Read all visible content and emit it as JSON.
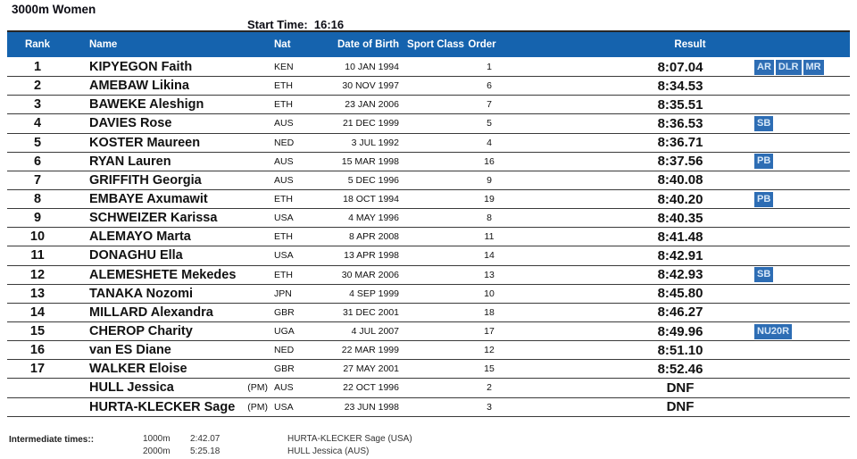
{
  "page": {
    "title": "3000m Women",
    "start_time": "Start Time:  16:16"
  },
  "table": {
    "columns": [
      "Rank",
      "Name",
      "Nat",
      "Date of Birth",
      "Sport Class",
      "Order",
      "Result"
    ],
    "rows": [
      {
        "rank": "1",
        "name": "KIPYEGON Faith",
        "pm": "",
        "nat": "KEN",
        "dob": "10 JAN 1994",
        "sport_class": "",
        "order": "1",
        "result": "8:07.04",
        "badges": [
          "AR",
          "DLR",
          "MR"
        ]
      },
      {
        "rank": "2",
        "name": "AMEBAW Likina",
        "pm": "",
        "nat": "ETH",
        "dob": "30 NOV 1997",
        "sport_class": "",
        "order": "6",
        "result": "8:34.53",
        "badges": []
      },
      {
        "rank": "3",
        "name": "BAWEKE Aleshign",
        "pm": "",
        "nat": "ETH",
        "dob": "23 JAN 2006",
        "sport_class": "",
        "order": "7",
        "result": "8:35.51",
        "badges": []
      },
      {
        "rank": "4",
        "name": "DAVIES Rose",
        "pm": "",
        "nat": "AUS",
        "dob": "21 DEC 1999",
        "sport_class": "",
        "order": "5",
        "result": "8:36.53",
        "badges": [
          "SB"
        ]
      },
      {
        "rank": "5",
        "name": "KOSTER Maureen",
        "pm": "",
        "nat": "NED",
        "dob": "3 JUL 1992",
        "sport_class": "",
        "order": "4",
        "result": "8:36.71",
        "badges": []
      },
      {
        "rank": "6",
        "name": "RYAN Lauren",
        "pm": "",
        "nat": "AUS",
        "dob": "15 MAR 1998",
        "sport_class": "",
        "order": "16",
        "result": "8:37.56",
        "badges": [
          "PB"
        ]
      },
      {
        "rank": "7",
        "name": "GRIFFITH Georgia",
        "pm": "",
        "nat": "AUS",
        "dob": "5 DEC 1996",
        "sport_class": "",
        "order": "9",
        "result": "8:40.08",
        "badges": []
      },
      {
        "rank": "8",
        "name": "EMBAYE Axumawit",
        "pm": "",
        "nat": "ETH",
        "dob": "18 OCT 1994",
        "sport_class": "",
        "order": "19",
        "result": "8:40.20",
        "badges": [
          "PB"
        ]
      },
      {
        "rank": "9",
        "name": "SCHWEIZER Karissa",
        "pm": "",
        "nat": "USA",
        "dob": "4 MAY 1996",
        "sport_class": "",
        "order": "8",
        "result": "8:40.35",
        "badges": []
      },
      {
        "rank": "10",
        "name": "ALEMAYO Marta",
        "pm": "",
        "nat": "ETH",
        "dob": "8 APR 2008",
        "sport_class": "",
        "order": "11",
        "result": "8:41.48",
        "badges": []
      },
      {
        "rank": "11",
        "name": "DONAGHU Ella",
        "pm": "",
        "nat": "USA",
        "dob": "13 APR 1998",
        "sport_class": "",
        "order": "14",
        "result": "8:42.91",
        "badges": []
      },
      {
        "rank": "12",
        "name": "ALEMESHETE Mekedes",
        "pm": "",
        "nat": "ETH",
        "dob": "30 MAR 2006",
        "sport_class": "",
        "order": "13",
        "result": "8:42.93",
        "badges": [
          "SB"
        ]
      },
      {
        "rank": "13",
        "name": "TANAKA Nozomi",
        "pm": "",
        "nat": "JPN",
        "dob": "4 SEP 1999",
        "sport_class": "",
        "order": "10",
        "result": "8:45.80",
        "badges": []
      },
      {
        "rank": "14",
        "name": "MILLARD Alexandra",
        "pm": "",
        "nat": "GBR",
        "dob": "31 DEC 2001",
        "sport_class": "",
        "order": "18",
        "result": "8:46.27",
        "badges": []
      },
      {
        "rank": "15",
        "name": "CHEROP Charity",
        "pm": "",
        "nat": "UGA",
        "dob": "4 JUL 2007",
        "sport_class": "",
        "order": "17",
        "result": "8:49.96",
        "badges": [
          "NU20R"
        ]
      },
      {
        "rank": "16",
        "name": "van ES Diane",
        "pm": "",
        "nat": "NED",
        "dob": "22 MAR 1999",
        "sport_class": "",
        "order": "12",
        "result": "8:51.10",
        "badges": []
      },
      {
        "rank": "17",
        "name": "WALKER Eloise",
        "pm": "",
        "nat": "GBR",
        "dob": "27 MAY 2001",
        "sport_class": "",
        "order": "15",
        "result": "8:52.46",
        "badges": []
      },
      {
        "rank": "",
        "name": "HULL Jessica",
        "pm": "(PM)",
        "nat": "AUS",
        "dob": "22 OCT 1996",
        "sport_class": "",
        "order": "2",
        "result": "DNF",
        "badges": []
      },
      {
        "rank": "",
        "name": "HURTA-KLECKER Sage",
        "pm": "(PM)",
        "nat": "USA",
        "dob": "23 JUN 1998",
        "sport_class": "",
        "order": "3",
        "result": "DNF",
        "badges": []
      }
    ]
  },
  "footer": {
    "label": "Intermediate times::",
    "rows": [
      {
        "distance": "1000m",
        "time": "2:42.07",
        "athlete": "HURTA-KLECKER Sage (USA)"
      },
      {
        "distance": "2000m",
        "time": "5:25.18",
        "athlete": "HULL Jessica (AUS)"
      }
    ]
  },
  "colors": {
    "header_bg": "#1563ae",
    "badge_bg": "#2d6db4",
    "badge_text": "#d8e8f8"
  }
}
